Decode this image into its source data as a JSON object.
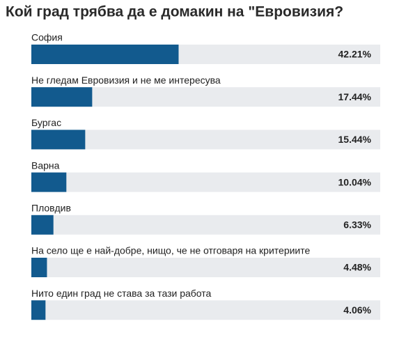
{
  "chart_data": {
    "type": "bar",
    "orientation": "horizontal",
    "title": "Кой град трябва да е домакин на \"Евровизия?",
    "categories": [
      "София",
      "Не гледам Евровизия и не ме интересува",
      "Бургас",
      "Варна",
      "Пловдив",
      "На село ще е най-добре, нищо, че не отговаря на критериите",
      "Нито един град не става за тази работа"
    ],
    "values": [
      42.21,
      17.44,
      15.44,
      10.04,
      6.33,
      4.48,
      4.06
    ],
    "value_labels": [
      "42.21%",
      "17.44%",
      "15.44%",
      "10.04%",
      "6.33%",
      "4.48%",
      "4.06%"
    ],
    "xlim": [
      0,
      100
    ],
    "color": "#125a8e",
    "track_color": "#e9ebee"
  }
}
